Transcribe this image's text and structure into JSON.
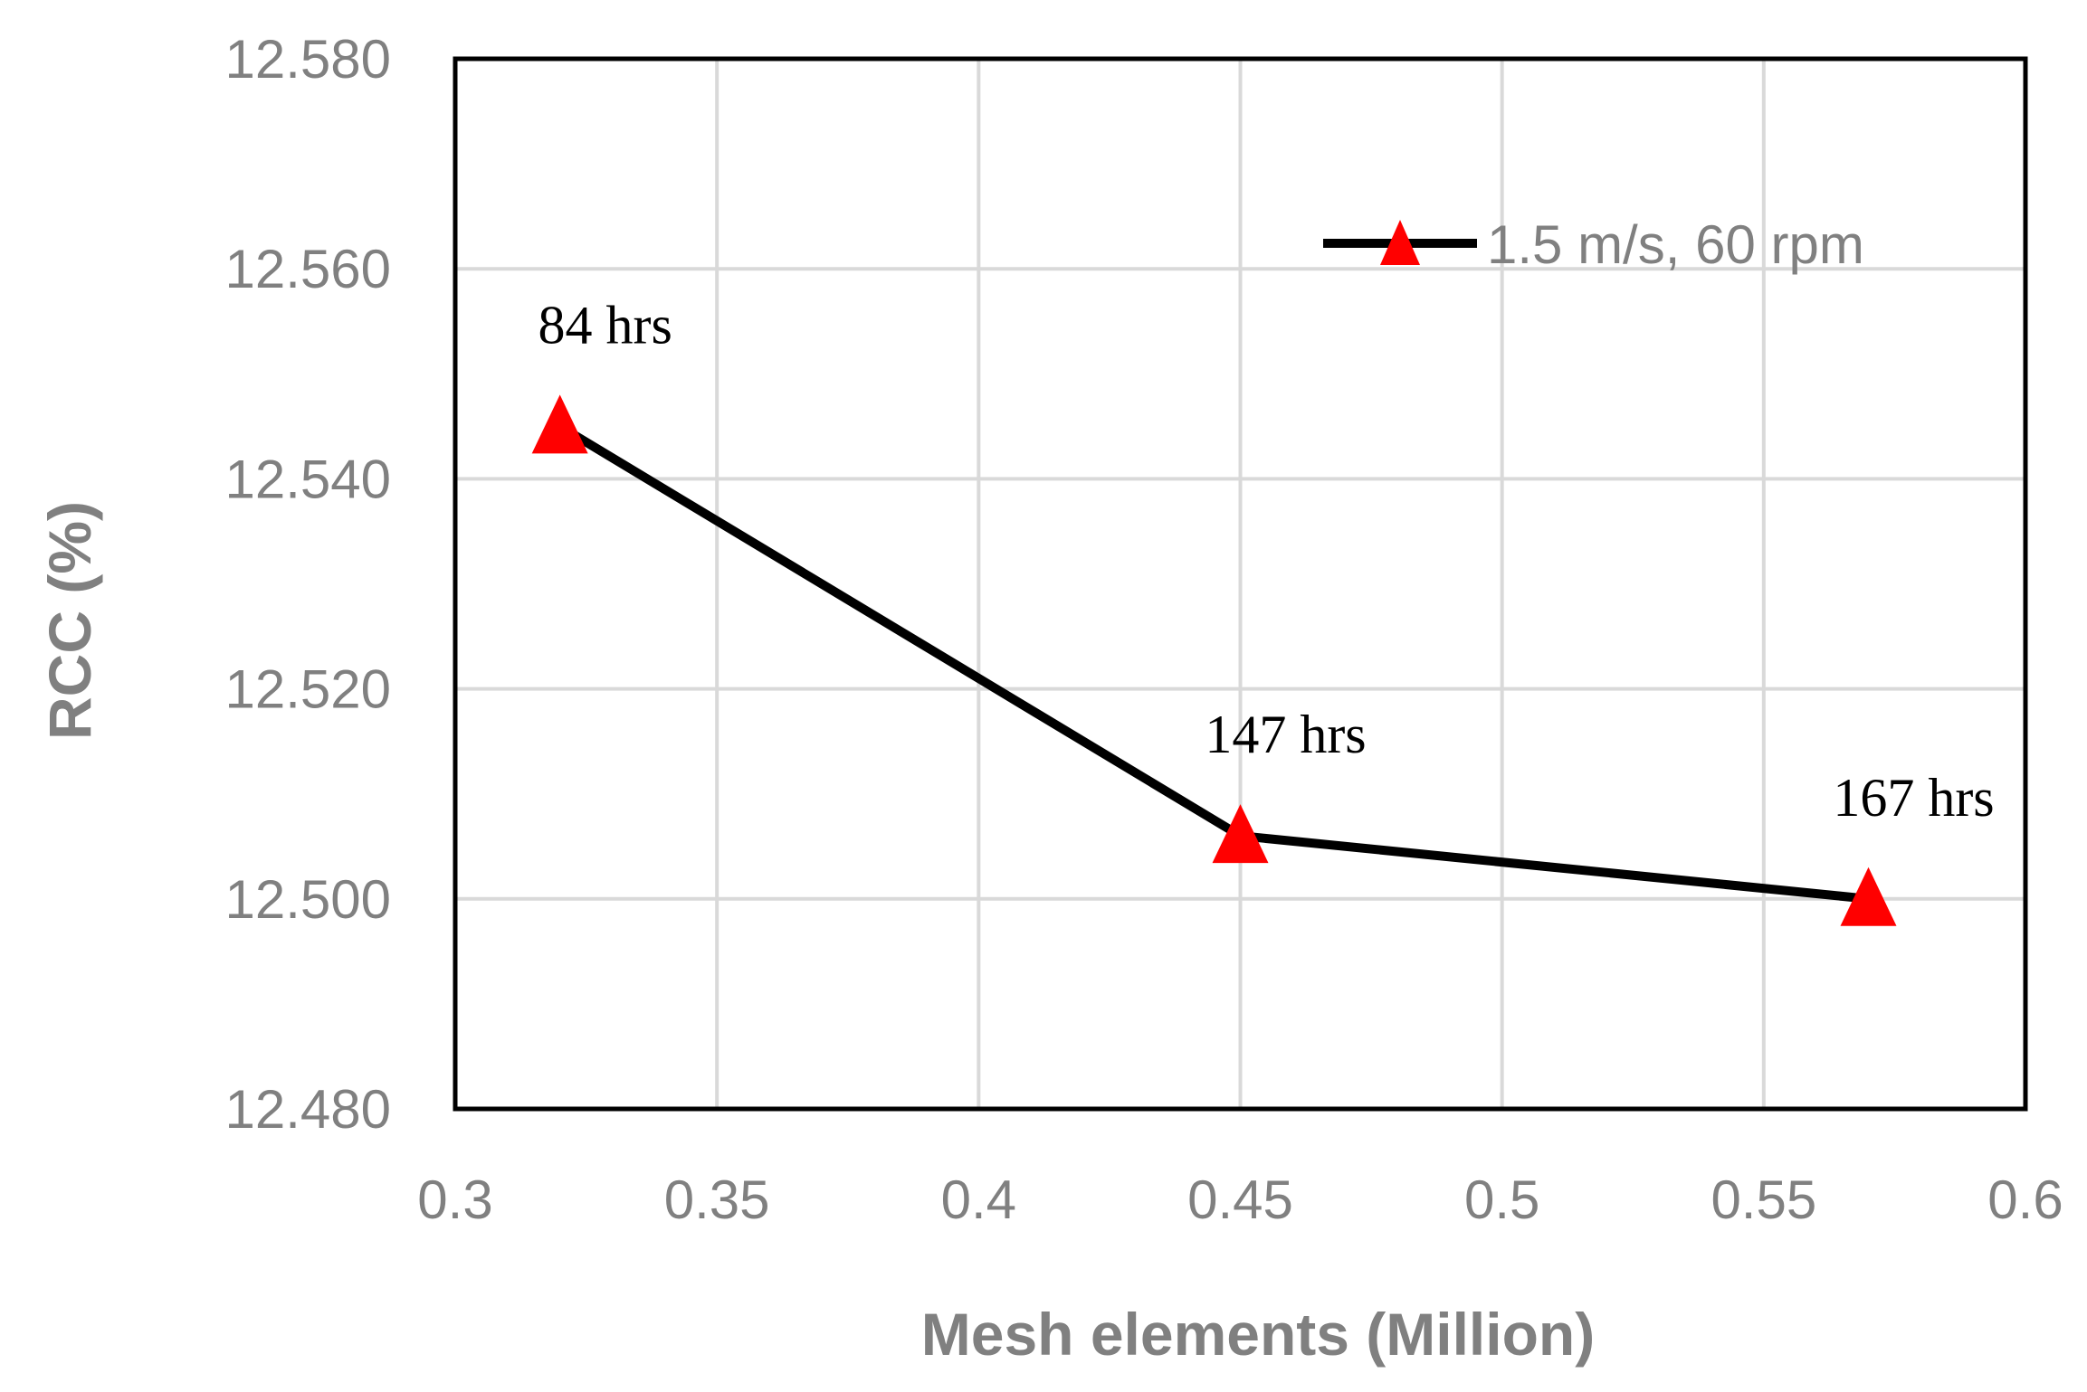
{
  "chart_data": {
    "type": "line",
    "title": "",
    "xlabel": "Mesh elements (Million)",
    "ylabel": "RCC (%)",
    "xlim": [
      0.3,
      0.6
    ],
    "ylim": [
      12.48,
      12.58
    ],
    "x_ticks": [
      "0.3",
      "0.35",
      "0.4",
      "0.45",
      "0.5",
      "0.55",
      "0.6"
    ],
    "y_ticks": [
      "12.480",
      "12.500",
      "12.520",
      "12.540",
      "12.560",
      "12.580"
    ],
    "grid": true,
    "legend_position": "top-right",
    "series": [
      {
        "name": "1.5 m/s, 60 rpm",
        "x": [
          0.32,
          0.45,
          0.57
        ],
        "y": [
          12.545,
          12.506,
          12.5
        ],
        "labels": [
          "84 hrs",
          "147 hrs",
          "167 hrs"
        ],
        "line_color": "#000000",
        "marker": "triangle",
        "marker_color": "#ff0000"
      }
    ]
  },
  "colors": {
    "grid": "#d9d9d9",
    "axis_text": "#808080",
    "plot_border": "#000000"
  }
}
